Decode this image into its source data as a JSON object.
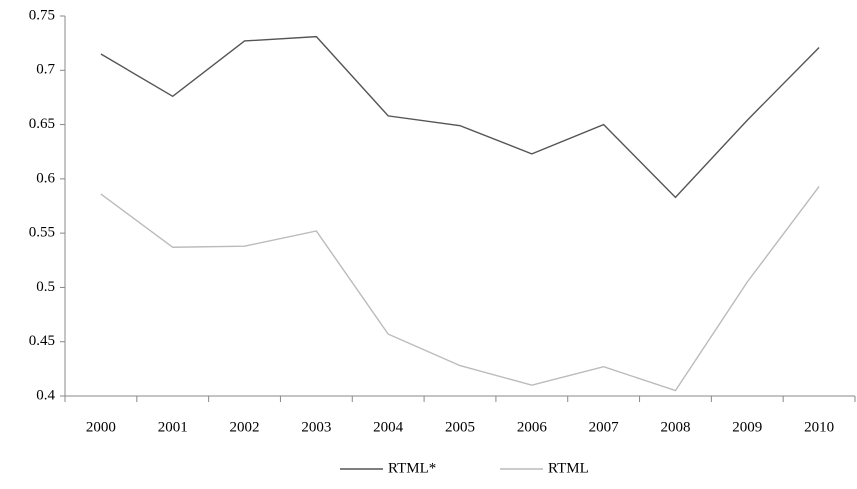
{
  "chart_data": {
    "type": "line",
    "categories": [
      "2000",
      "2001",
      "2002",
      "2003",
      "2004",
      "2005",
      "2006",
      "2007",
      "2008",
      "2009",
      "2010"
    ],
    "series": [
      {
        "name": "RTML*",
        "color": "#555555",
        "values": [
          0.715,
          0.676,
          0.727,
          0.731,
          0.658,
          0.649,
          0.623,
          0.65,
          0.583,
          0.654,
          0.721
        ]
      },
      {
        "name": "RTML",
        "color": "#bbbbbb",
        "values": [
          0.586,
          0.537,
          0.538,
          0.552,
          0.457,
          0.428,
          0.41,
          0.427,
          0.405,
          0.505,
          0.593
        ]
      }
    ],
    "ylim": [
      0.4,
      0.75
    ],
    "yticks": [
      0.4,
      0.45,
      0.5,
      0.55,
      0.6,
      0.65,
      0.7,
      0.75
    ],
    "grid": false,
    "legend": "bottom"
  }
}
